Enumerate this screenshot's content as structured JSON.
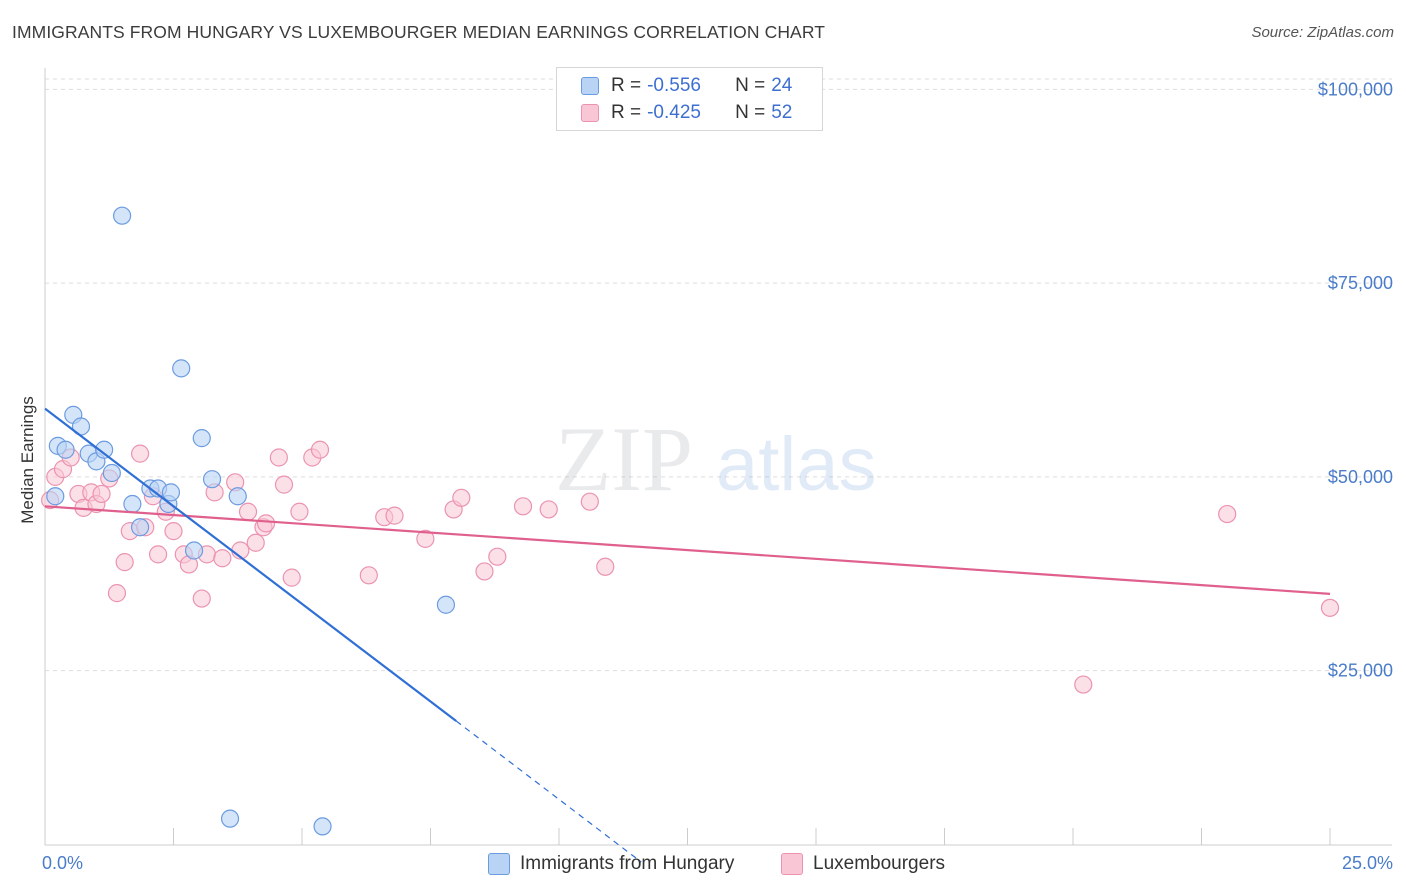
{
  "header": {
    "title": "IMMIGRANTS FROM HUNGARY VS LUXEMBOURGER MEDIAN EARNINGS CORRELATION CHART",
    "source": "Source: ZipAtlas.com"
  },
  "watermark": {
    "zip": "ZIP",
    "atlas": "atlas"
  },
  "legend": {
    "rows": [
      {
        "r_label": "R =",
        "r_value": "-0.556",
        "n_label": "N =",
        "n_value": "24"
      },
      {
        "r_label": "R =",
        "r_value": "-0.425",
        "n_label": "N =",
        "n_value": "52"
      }
    ]
  },
  "colors": {
    "hungary_fill": "#b9d3f5",
    "hungary_stroke": "#6b9be0",
    "hungary_line": "#2f6fd6",
    "lux_fill": "#f9c6d6",
    "lux_stroke": "#eb93b0",
    "lux_line": "#e0608d",
    "tick_text": "#4a7cc9"
  },
  "chart_data": {
    "type": "scatter",
    "title": "IMMIGRANTS FROM HUNGARY VS LUXEMBOURGER MEDIAN EARNINGS CORRELATION CHART",
    "xlabel": "",
    "ylabel": "Median Earnings",
    "xlim": [
      0,
      25
    ],
    "ylim": [
      2500,
      102500
    ],
    "x_tick_labels": [
      "0.0%",
      "25.0%"
    ],
    "y_ticks": [
      25000,
      50000,
      75000,
      100000
    ],
    "y_tick_labels": [
      "$25,000",
      "$50,000",
      "$75,000",
      "$100,000"
    ],
    "grid": "horizontal dashed",
    "legend_placement": "top-center",
    "series": [
      {
        "name": "Immigrants from Hungary",
        "points": [
          [
            0.2,
            47500
          ],
          [
            0.25,
            54000
          ],
          [
            0.4,
            53500
          ],
          [
            0.55,
            58000
          ],
          [
            0.7,
            56500
          ],
          [
            0.85,
            53000
          ],
          [
            1.0,
            52000
          ],
          [
            1.15,
            53500
          ],
          [
            1.3,
            50500
          ],
          [
            1.5,
            83700
          ],
          [
            1.7,
            46500
          ],
          [
            1.85,
            43500
          ],
          [
            2.05,
            48500
          ],
          [
            2.2,
            48500
          ],
          [
            2.4,
            46500
          ],
          [
            2.45,
            48000
          ],
          [
            2.65,
            64000
          ],
          [
            2.9,
            40500
          ],
          [
            3.05,
            55000
          ],
          [
            3.25,
            49700
          ],
          [
            3.75,
            47500
          ],
          [
            3.6,
            5900
          ],
          [
            5.4,
            4900
          ],
          [
            7.8,
            33500
          ]
        ],
        "trend": {
          "x": [
            0.0,
            8.0
          ],
          "y": [
            58800,
            18500
          ]
        },
        "trend_dashed": {
          "x": [
            8.0,
            11.6
          ],
          "y": [
            18500,
            300
          ]
        }
      },
      {
        "name": "Luxembourgers",
        "points": [
          [
            0.1,
            47000
          ],
          [
            0.2,
            50000
          ],
          [
            0.35,
            51000
          ],
          [
            0.5,
            52500
          ],
          [
            0.65,
            47800
          ],
          [
            0.75,
            46000
          ],
          [
            0.9,
            48000
          ],
          [
            1.0,
            46500
          ],
          [
            1.1,
            47800
          ],
          [
            1.25,
            49800
          ],
          [
            1.4,
            35000
          ],
          [
            1.55,
            39000
          ],
          [
            1.65,
            43000
          ],
          [
            1.85,
            53000
          ],
          [
            1.95,
            43500
          ],
          [
            2.1,
            47500
          ],
          [
            2.2,
            40000
          ],
          [
            2.35,
            45500
          ],
          [
            2.5,
            43000
          ],
          [
            2.7,
            40000
          ],
          [
            2.8,
            38700
          ],
          [
            3.05,
            34300
          ],
          [
            3.15,
            40000
          ],
          [
            3.3,
            48000
          ],
          [
            3.45,
            39500
          ],
          [
            3.7,
            49300
          ],
          [
            3.8,
            40500
          ],
          [
            3.95,
            45500
          ],
          [
            4.1,
            41500
          ],
          [
            4.25,
            43500
          ],
          [
            4.3,
            44000
          ],
          [
            4.55,
            52500
          ],
          [
            4.65,
            49000
          ],
          [
            4.8,
            37000
          ],
          [
            4.95,
            45500
          ],
          [
            5.2,
            52500
          ],
          [
            5.35,
            53500
          ],
          [
            6.3,
            37300
          ],
          [
            6.6,
            44800
          ],
          [
            6.8,
            45000
          ],
          [
            7.4,
            42000
          ],
          [
            7.95,
            45800
          ],
          [
            8.1,
            47300
          ],
          [
            8.55,
            37800
          ],
          [
            8.8,
            39700
          ],
          [
            9.3,
            46200
          ],
          [
            9.8,
            45800
          ],
          [
            10.6,
            46800
          ],
          [
            10.9,
            38400
          ],
          [
            20.2,
            23200
          ],
          [
            23.0,
            45200
          ],
          [
            25.0,
            33100
          ]
        ],
        "trend": {
          "x": [
            0.0,
            25.0
          ],
          "y": [
            46200,
            34900
          ]
        }
      }
    ]
  }
}
